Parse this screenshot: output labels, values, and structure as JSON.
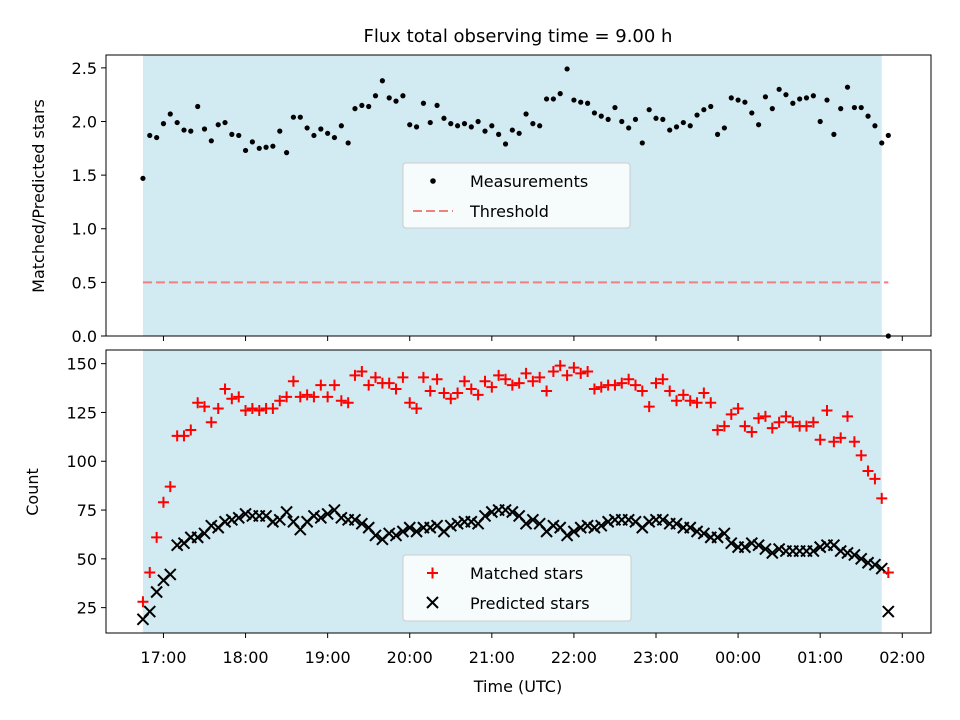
{
  "title": "Flux total observing time = 9.00 h",
  "colors": {
    "observing_band": "#add8e6",
    "matched": "#ff0000",
    "predicted": "#000000",
    "threshold": "#f08080",
    "measurements": "#000000"
  },
  "chart_data": [
    {
      "type": "scatter",
      "ylabel": "Matched/Predicted stars",
      "ylim": [
        0,
        2.62
      ],
      "yticks": [
        "0.0",
        "0.5",
        "1.0",
        "1.5",
        "2.0",
        "2.5"
      ],
      "grid": false,
      "legend_placement": "center",
      "observing_window_hours": [
        16.75,
        25.75
      ],
      "threshold": {
        "name": "Threshold",
        "value": 0.5,
        "x_range": [
          16.75,
          25.83
        ]
      },
      "series": [
        {
          "name": "Measurements",
          "x_hours": [
            16.75,
            16.833,
            16.917,
            17.0,
            17.083,
            17.167,
            17.25,
            17.333,
            17.417,
            17.5,
            17.583,
            17.667,
            17.75,
            17.833,
            17.917,
            18.0,
            18.083,
            18.167,
            18.25,
            18.333,
            18.417,
            18.5,
            18.583,
            18.667,
            18.75,
            18.833,
            18.917,
            19.0,
            19.083,
            19.167,
            19.25,
            19.333,
            19.417,
            19.5,
            19.583,
            19.667,
            19.75,
            19.833,
            19.917,
            20.0,
            20.083,
            20.167,
            20.25,
            20.333,
            20.417,
            20.5,
            20.583,
            20.667,
            20.75,
            20.833,
            20.917,
            21.0,
            21.083,
            21.167,
            21.25,
            21.333,
            21.417,
            21.5,
            21.583,
            21.667,
            21.75,
            21.833,
            21.917,
            22.0,
            22.083,
            22.167,
            22.25,
            22.333,
            22.417,
            22.5,
            22.583,
            22.667,
            22.75,
            22.833,
            22.917,
            23.0,
            23.083,
            23.167,
            23.25,
            23.333,
            23.417,
            23.5,
            23.583,
            23.667,
            23.75,
            23.833,
            23.917,
            24.0,
            24.083,
            24.167,
            24.25,
            24.333,
            24.417,
            24.5,
            24.583,
            24.667,
            24.75,
            24.833,
            24.917,
            25.0,
            25.083,
            25.167,
            25.25,
            25.333,
            25.417,
            25.5,
            25.583,
            25.667,
            25.75,
            25.83
          ],
          "values": [
            1.47,
            1.87,
            1.85,
            1.98,
            2.07,
            1.99,
            1.92,
            1.91,
            2.14,
            1.93,
            1.82,
            1.97,
            1.99,
            1.88,
            1.87,
            1.73,
            1.81,
            1.75,
            1.76,
            1.77,
            1.91,
            1.71,
            2.04,
            2.04,
            1.94,
            1.87,
            1.93,
            1.89,
            1.85,
            1.96,
            1.8,
            2.12,
            2.15,
            2.14,
            2.24,
            2.38,
            2.22,
            2.19,
            2.24,
            1.97,
            1.95,
            2.17,
            1.99,
            2.15,
            2.03,
            1.98,
            1.96,
            1.98,
            1.95,
            2.0,
            1.91,
            1.96,
            1.88,
            1.79,
            1.92,
            1.89,
            2.07,
            1.98,
            1.96,
            2.21,
            2.21,
            2.26,
            2.49,
            2.2,
            2.18,
            2.17,
            2.08,
            2.05,
            2.02,
            2.13,
            2.0,
            1.94,
            2.02,
            1.8,
            2.11,
            2.03,
            2.02,
            1.92,
            1.95,
            1.99,
            1.96,
            2.06,
            2.11,
            2.14,
            1.88,
            1.94,
            2.22,
            2.2,
            2.18,
            2.08,
            1.97,
            2.23,
            2.12,
            2.3,
            2.25,
            2.17,
            2.21,
            2.22,
            2.24,
            2.0,
            2.2,
            1.88,
            2.12,
            2.32,
            2.13,
            2.13,
            2.05,
            1.96,
            1.8,
            1.87
          ],
          "extra_points": [
            {
              "x_hours": 25.83,
              "value": 0.0
            }
          ]
        }
      ]
    },
    {
      "type": "scatter",
      "ylabel": "Count",
      "xlabel": "Time (UTC)",
      "ylim": [
        12,
        157
      ],
      "yticks": [
        "25",
        "50",
        "75",
        "100",
        "125",
        "150"
      ],
      "xticks": [
        "17:00",
        "18:00",
        "19:00",
        "20:00",
        "21:00",
        "22:00",
        "23:00",
        "00:00",
        "01:00",
        "02:00"
      ],
      "xlim_hours": [
        16.3,
        26.35
      ],
      "grid": false,
      "legend_placement": "lower center",
      "observing_window_hours": [
        16.75,
        25.75
      ],
      "series": [
        {
          "name": "Matched stars",
          "marker": "+",
          "x_hours": [
            16.75,
            16.833,
            16.917,
            17.0,
            17.083,
            17.167,
            17.25,
            17.333,
            17.417,
            17.5,
            17.583,
            17.667,
            17.75,
            17.833,
            17.917,
            18.0,
            18.083,
            18.167,
            18.25,
            18.333,
            18.417,
            18.5,
            18.583,
            18.667,
            18.75,
            18.833,
            18.917,
            19.0,
            19.083,
            19.167,
            19.25,
            19.333,
            19.417,
            19.5,
            19.583,
            19.667,
            19.75,
            19.833,
            19.917,
            20.0,
            20.083,
            20.167,
            20.25,
            20.333,
            20.417,
            20.5,
            20.583,
            20.667,
            20.75,
            20.833,
            20.917,
            21.0,
            21.083,
            21.167,
            21.25,
            21.333,
            21.417,
            21.5,
            21.583,
            21.667,
            21.75,
            21.833,
            21.917,
            22.0,
            22.083,
            22.167,
            22.25,
            22.333,
            22.417,
            22.5,
            22.583,
            22.667,
            22.75,
            22.833,
            22.917,
            23.0,
            23.083,
            23.167,
            23.25,
            23.333,
            23.417,
            23.5,
            23.583,
            23.667,
            23.75,
            23.833,
            23.917,
            24.0,
            24.083,
            24.167,
            24.25,
            24.333,
            24.417,
            24.5,
            24.583,
            24.667,
            24.75,
            24.833,
            24.917,
            25.0,
            25.083,
            25.167,
            25.25,
            25.333,
            25.417,
            25.5,
            25.583,
            25.667,
            25.75,
            25.83
          ],
          "values": [
            28,
            43,
            61,
            79,
            87,
            113,
            113,
            116,
            130,
            128,
            120,
            127,
            137,
            132,
            133,
            126,
            127,
            126,
            127,
            127,
            131,
            133,
            141,
            133,
            134,
            133,
            139,
            133,
            139,
            131,
            130,
            144,
            146,
            139,
            143,
            140,
            140,
            137,
            143,
            130,
            127,
            143,
            136,
            142,
            135,
            132,
            135,
            141,
            137,
            134,
            141,
            138,
            144,
            142,
            139,
            140,
            145,
            141,
            143,
            136,
            146,
            149,
            144,
            148,
            145,
            146,
            137,
            138,
            139,
            139,
            140,
            142,
            139,
            136,
            128,
            140,
            142,
            136,
            131,
            134,
            131,
            130,
            135,
            130,
            116,
            118,
            124,
            127,
            118,
            115,
            122,
            123,
            117,
            120,
            123,
            120,
            118,
            118,
            120,
            111,
            126,
            110,
            112,
            123,
            110,
            103,
            95,
            91,
            81,
            43
          ]
        },
        {
          "name": "Predicted stars",
          "marker": "x",
          "x_hours": [
            16.75,
            16.833,
            16.917,
            17.0,
            17.083,
            17.167,
            17.25,
            17.333,
            17.417,
            17.5,
            17.583,
            17.667,
            17.75,
            17.833,
            17.917,
            18.0,
            18.083,
            18.167,
            18.25,
            18.333,
            18.417,
            18.5,
            18.583,
            18.667,
            18.75,
            18.833,
            18.917,
            19.0,
            19.083,
            19.167,
            19.25,
            19.333,
            19.417,
            19.5,
            19.583,
            19.667,
            19.75,
            19.833,
            19.917,
            20.0,
            20.083,
            20.167,
            20.25,
            20.333,
            20.417,
            20.5,
            20.583,
            20.667,
            20.75,
            20.833,
            20.917,
            21.0,
            21.083,
            21.167,
            21.25,
            21.333,
            21.417,
            21.5,
            21.583,
            21.667,
            21.75,
            21.833,
            21.917,
            22.0,
            22.083,
            22.167,
            22.25,
            22.333,
            22.417,
            22.5,
            22.583,
            22.667,
            22.75,
            22.833,
            22.917,
            23.0,
            23.083,
            23.167,
            23.25,
            23.333,
            23.417,
            23.5,
            23.583,
            23.667,
            23.75,
            23.833,
            23.917,
            24.0,
            24.083,
            24.167,
            24.25,
            24.333,
            24.417,
            24.5,
            24.583,
            24.667,
            24.75,
            24.833,
            24.917,
            25.0,
            25.083,
            25.167,
            25.25,
            25.333,
            25.417,
            25.5,
            25.583,
            25.667,
            25.75,
            25.83
          ],
          "values": [
            19,
            23,
            33,
            39,
            42,
            57,
            58,
            61,
            61,
            63,
            67,
            66,
            69,
            70,
            71,
            73,
            72,
            72,
            72,
            69,
            70,
            74,
            69,
            65,
            69,
            72,
            71,
            73,
            75,
            71,
            70,
            70,
            68,
            66,
            62,
            60,
            63,
            62,
            64,
            66,
            64,
            66,
            66,
            67,
            64,
            67,
            68,
            69,
            69,
            68,
            72,
            74,
            75,
            75,
            74,
            72,
            68,
            70,
            68,
            64,
            67,
            66,
            62,
            64,
            66,
            67,
            66,
            67,
            69,
            70,
            70,
            70,
            69,
            66,
            69,
            70,
            70,
            68,
            68,
            66,
            66,
            64,
            63,
            61,
            61,
            63,
            58,
            56,
            56,
            58,
            57,
            55,
            53,
            55,
            54,
            54,
            54,
            54,
            54,
            56,
            57,
            57,
            54,
            53,
            52,
            50,
            48,
            47,
            45,
            23
          ]
        }
      ]
    }
  ]
}
